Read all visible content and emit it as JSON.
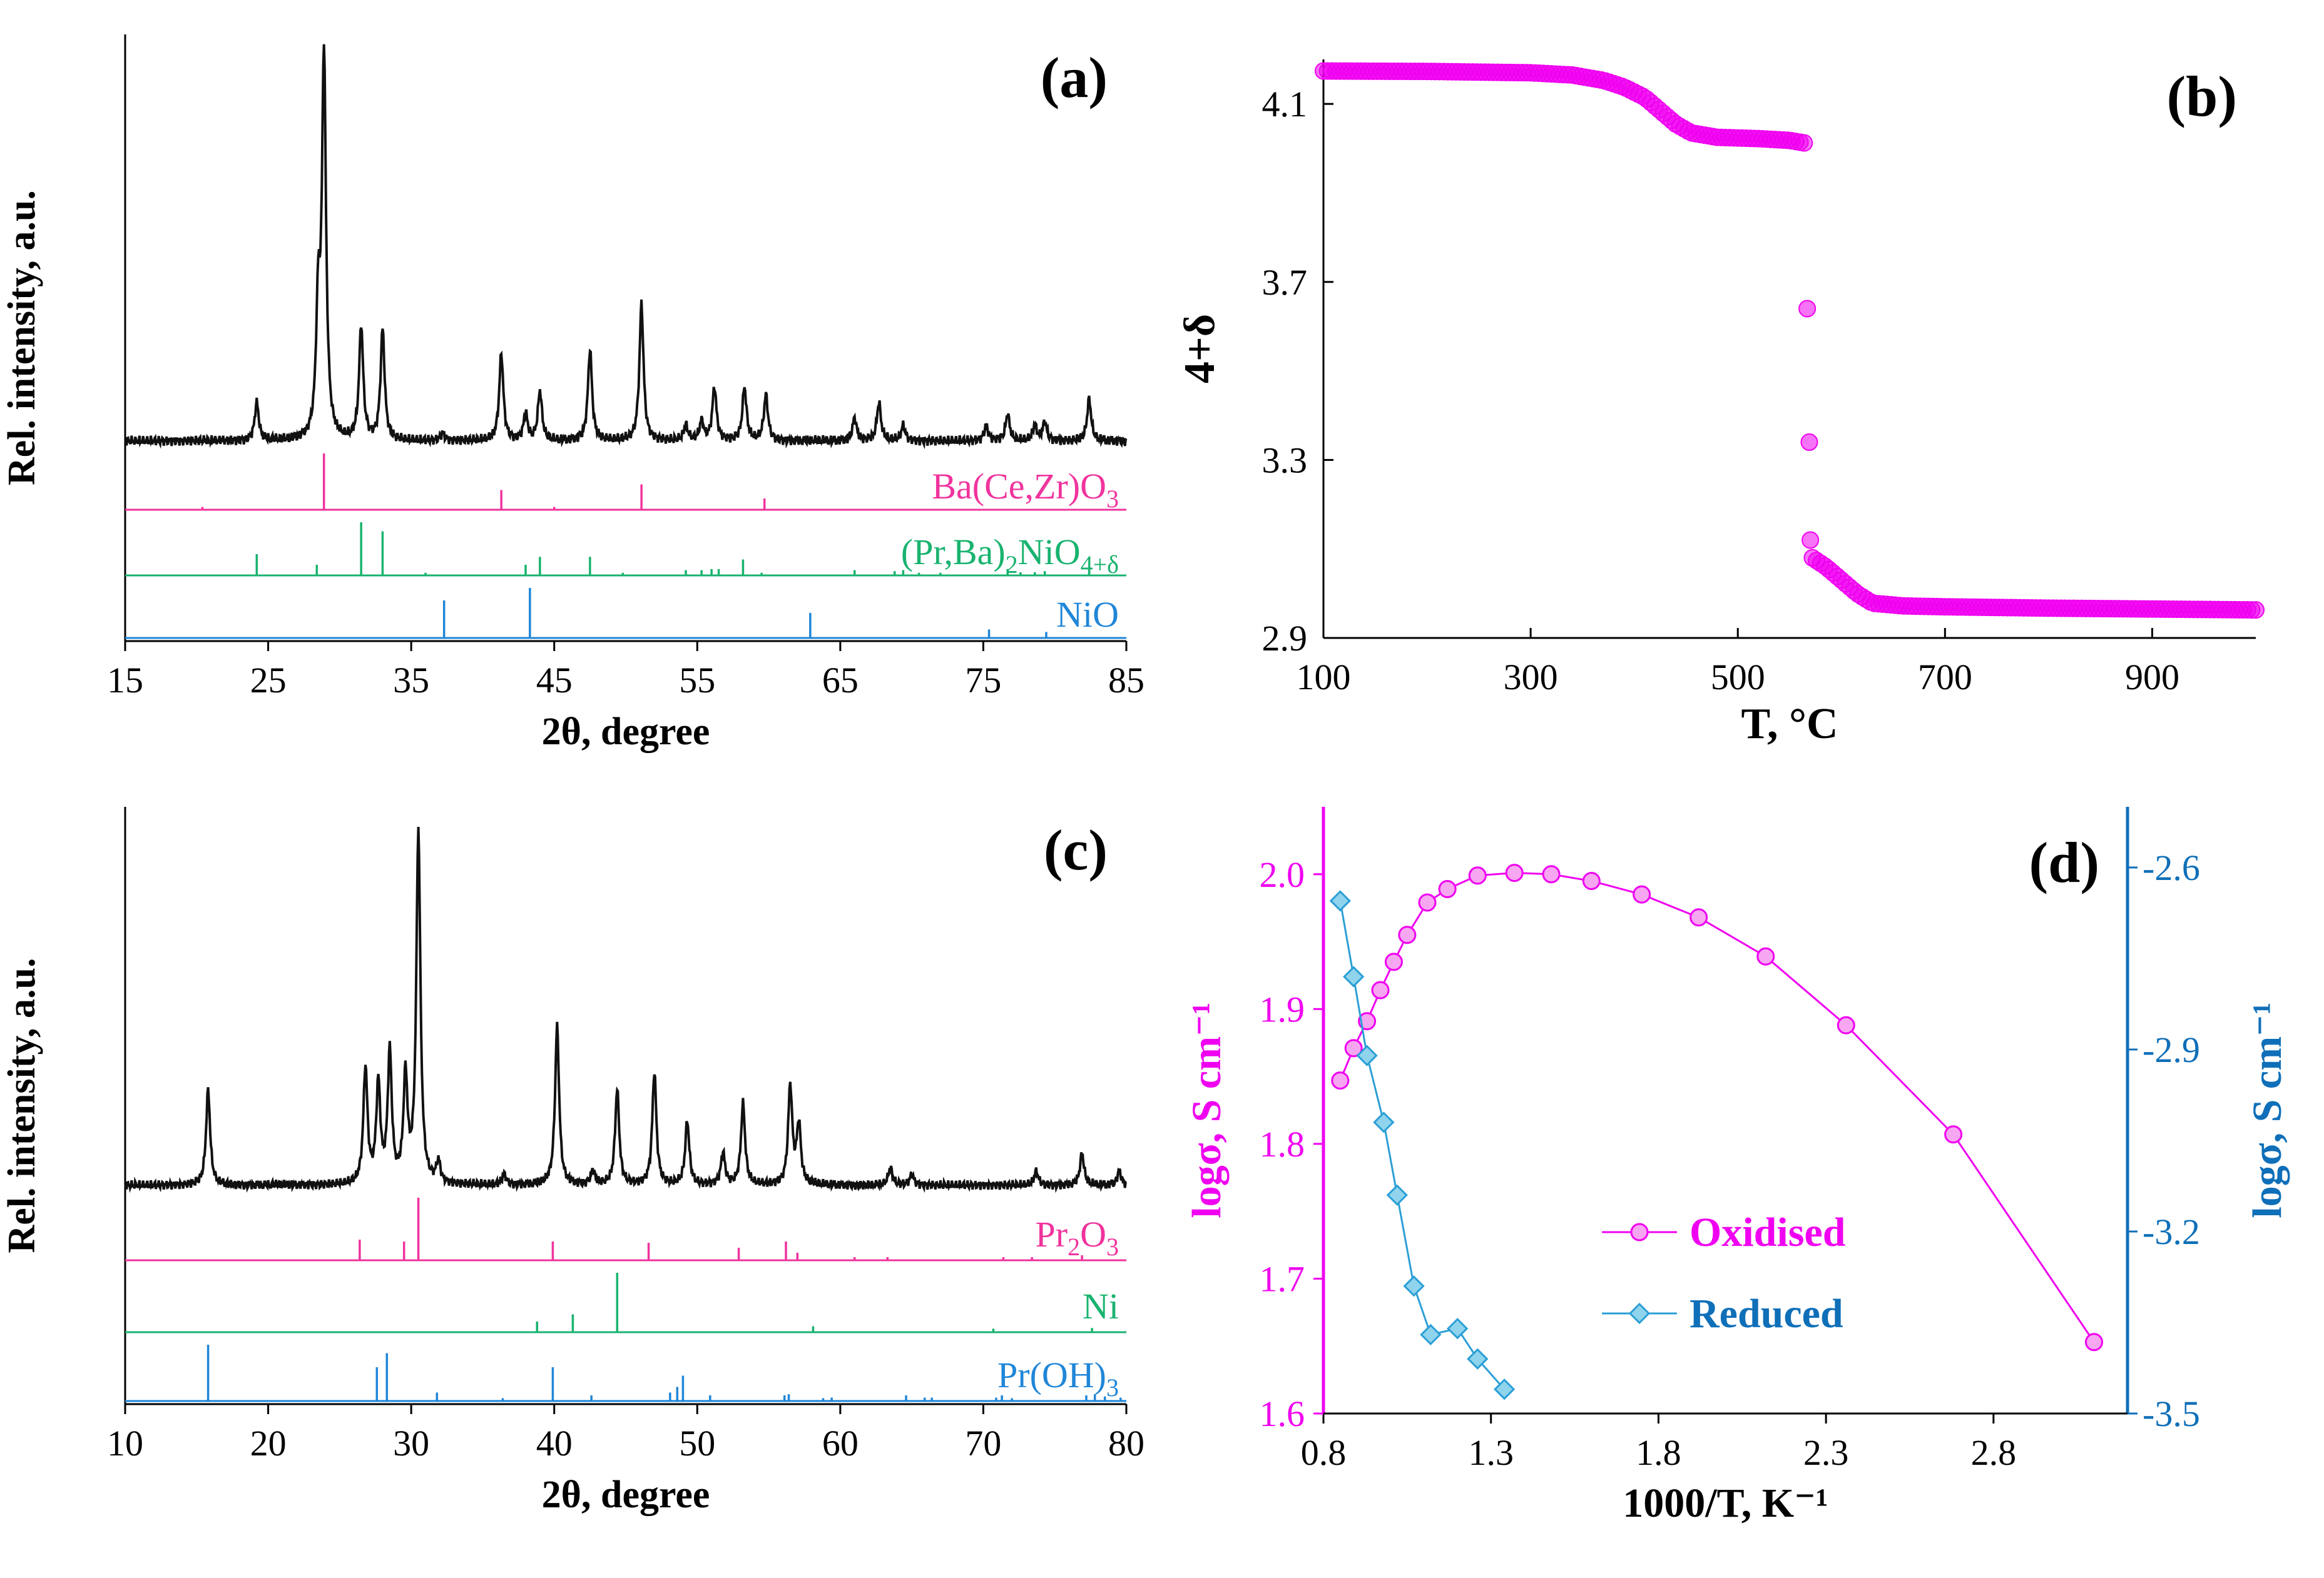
{
  "colors": {
    "axis": "#000000",
    "xrd": "#111111",
    "phase_pink": "#f0339d",
    "phase_green": "#19b36f",
    "phase_blue": "#1f86d8",
    "magenta": "#f000f0",
    "blue": "#0f6fb8",
    "reduced_fill": "#8fd3ec",
    "reduced_line": "#2b9fd6"
  },
  "chart_data": [
    {
      "panel": "(a)",
      "type": "line",
      "xlabel": "2θ, degree",
      "ylabel": "Rel. intensity, a.u.",
      "xlim": [
        15,
        85
      ],
      "xticks": [
        "15",
        "25",
        "35",
        "45",
        "55",
        "65",
        "75",
        "85"
      ],
      "xrd_peaks": [
        {
          "x": 24.2,
          "h": 0.1
        },
        {
          "x": 28.5,
          "h": 0.33
        },
        {
          "x": 28.9,
          "h": 1.0
        },
        {
          "x": 31.5,
          "h": 0.3
        },
        {
          "x": 33.0,
          "h": 0.29
        },
        {
          "x": 37.2,
          "h": 0.02
        },
        {
          "x": 41.3,
          "h": 0.23
        },
        {
          "x": 43.0,
          "h": 0.07
        },
        {
          "x": 44.0,
          "h": 0.13
        },
        {
          "x": 47.5,
          "h": 0.24
        },
        {
          "x": 51.1,
          "h": 0.36
        },
        {
          "x": 54.2,
          "h": 0.04
        },
        {
          "x": 55.3,
          "h": 0.05
        },
        {
          "x": 56.2,
          "h": 0.14
        },
        {
          "x": 58.3,
          "h": 0.14
        },
        {
          "x": 59.8,
          "h": 0.12
        },
        {
          "x": 66.0,
          "h": 0.06
        },
        {
          "x": 67.7,
          "h": 0.1
        },
        {
          "x": 69.4,
          "h": 0.04
        },
        {
          "x": 75.2,
          "h": 0.04
        },
        {
          "x": 76.7,
          "h": 0.07
        },
        {
          "x": 78.6,
          "h": 0.04
        },
        {
          "x": 79.3,
          "h": 0.05
        },
        {
          "x": 82.4,
          "h": 0.11
        }
      ],
      "phases": [
        {
          "label": "Ba(Ce,Zr)O",
          "sub": "3",
          "color_key": "phase_pink",
          "sticks": [
            [
              28.9,
              1.0
            ],
            [
              41.3,
              0.35
            ],
            [
              51.1,
              0.45
            ],
            [
              59.7,
              0.2
            ],
            [
              20.4,
              0.05
            ],
            [
              45.0,
              0.05
            ]
          ]
        },
        {
          "label": "(Pr,Ba)",
          "sub": "2",
          "label2": "NiO",
          "sub2": "4+δ",
          "color_key": "phase_green",
          "sticks": [
            [
              24.2,
              0.4
            ],
            [
              28.4,
              0.2
            ],
            [
              31.5,
              1.0
            ],
            [
              33.0,
              0.83
            ],
            [
              36.0,
              0.05
            ],
            [
              43.0,
              0.2
            ],
            [
              44.0,
              0.35
            ],
            [
              47.5,
              0.35
            ],
            [
              49.8,
              0.05
            ],
            [
              54.2,
              0.1
            ],
            [
              55.3,
              0.1
            ],
            [
              56.0,
              0.12
            ],
            [
              56.5,
              0.12
            ],
            [
              58.2,
              0.3
            ],
            [
              59.5,
              0.05
            ],
            [
              66.0,
              0.1
            ],
            [
              68.8,
              0.08
            ],
            [
              69.4,
              0.1
            ],
            [
              70.5,
              0.05
            ],
            [
              72.0,
              0.05
            ],
            [
              76.7,
              0.12
            ],
            [
              77.6,
              0.06
            ],
            [
              78.6,
              0.06
            ],
            [
              79.3,
              0.08
            ],
            [
              82.4,
              0.1
            ]
          ]
        },
        {
          "label": "NiO",
          "sub": "",
          "color_key": "phase_blue",
          "sticks": [
            [
              37.3,
              0.75
            ],
            [
              43.3,
              1.0
            ],
            [
              62.9,
              0.5
            ],
            [
              75.4,
              0.17
            ],
            [
              79.4,
              0.12
            ]
          ]
        }
      ]
    },
    {
      "panel": "(b)",
      "type": "scatter",
      "xlabel": "T, °C",
      "ylabel": "4+δ",
      "xlim": [
        100,
        1000
      ],
      "ylim": [
        2.9,
        4.2
      ],
      "xticks": [
        "100",
        "300",
        "500",
        "700",
        "900"
      ],
      "yticks": [
        "2.9",
        "3.3",
        "3.7",
        "4.1"
      ],
      "curve": [
        [
          100,
          4.174
        ],
        [
          200,
          4.173
        ],
        [
          300,
          4.17
        ],
        [
          340,
          4.165
        ],
        [
          370,
          4.153
        ],
        [
          390,
          4.138
        ],
        [
          410,
          4.115
        ],
        [
          425,
          4.085
        ],
        [
          440,
          4.055
        ],
        [
          455,
          4.035
        ],
        [
          480,
          4.025
        ],
        [
          520,
          4.022
        ],
        [
          550,
          4.018
        ],
        [
          565,
          4.012
        ]
      ],
      "jump_points": [
        [
          567,
          3.64
        ],
        [
          569,
          3.34
        ],
        [
          570,
          3.12
        ]
      ],
      "curve2": [
        [
          572,
          3.08
        ],
        [
          585,
          3.06
        ],
        [
          600,
          3.03
        ],
        [
          615,
          3.0
        ],
        [
          630,
          2.978
        ],
        [
          660,
          2.972
        ],
        [
          700,
          2.97
        ],
        [
          800,
          2.967
        ],
        [
          900,
          2.965
        ],
        [
          1000,
          2.963
        ]
      ]
    },
    {
      "panel": "(c)",
      "type": "line",
      "xlabel": "2θ, degree",
      "ylabel": "Rel. intensity, a.u.",
      "xlim": [
        10,
        80
      ],
      "xticks": [
        "10",
        "20",
        "30",
        "40",
        "50",
        "60",
        "70",
        "80"
      ],
      "xrd_peaks": [
        {
          "x": 15.8,
          "h": 0.27
        },
        {
          "x": 26.8,
          "h": 0.33
        },
        {
          "x": 27.7,
          "h": 0.28
        },
        {
          "x": 28.5,
          "h": 0.37
        },
        {
          "x": 29.6,
          "h": 0.3
        },
        {
          "x": 30.5,
          "h": 1.0
        },
        {
          "x": 31.9,
          "h": 0.06
        },
        {
          "x": 36.5,
          "h": 0.03
        },
        {
          "x": 40.2,
          "h": 0.45
        },
        {
          "x": 42.7,
          "h": 0.04
        },
        {
          "x": 44.4,
          "h": 0.27
        },
        {
          "x": 47.0,
          "h": 0.32
        },
        {
          "x": 49.3,
          "h": 0.18
        },
        {
          "x": 51.8,
          "h": 0.09
        },
        {
          "x": 53.2,
          "h": 0.23
        },
        {
          "x": 56.5,
          "h": 0.28
        },
        {
          "x": 57.1,
          "h": 0.17
        },
        {
          "x": 63.5,
          "h": 0.05
        },
        {
          "x": 65.0,
          "h": 0.03
        },
        {
          "x": 73.7,
          "h": 0.04
        },
        {
          "x": 76.9,
          "h": 0.09
        },
        {
          "x": 79.5,
          "h": 0.04
        }
      ],
      "phases": [
        {
          "label": "Pr",
          "sub": "2",
          "label2": "O",
          "sub2": "3",
          "color_key": "phase_pink",
          "sticks": [
            [
              26.4,
              0.33
            ],
            [
              29.5,
              0.3
            ],
            [
              30.5,
              1.0
            ],
            [
              39.9,
              0.3
            ],
            [
              46.6,
              0.28
            ],
            [
              52.9,
              0.2
            ],
            [
              56.2,
              0.3
            ],
            [
              57.0,
              0.12
            ],
            [
              61.0,
              0.05
            ],
            [
              63.3,
              0.05
            ],
            [
              71.4,
              0.05
            ],
            [
              73.4,
              0.05
            ],
            [
              76.9,
              0.08
            ]
          ]
        },
        {
          "label": "Ni",
          "sub": "",
          "color_key": "phase_green",
          "sticks": [
            [
              38.8,
              0.18
            ],
            [
              41.3,
              0.3
            ],
            [
              44.4,
              1.0
            ],
            [
              58.1,
              0.1
            ],
            [
              70.7,
              0.06
            ],
            [
              77.6,
              0.07
            ]
          ]
        },
        {
          "label": "Pr(OH)",
          "sub": "3",
          "color_key": "phase_blue",
          "sticks": [
            [
              15.8,
              1.0
            ],
            [
              27.6,
              0.6
            ],
            [
              28.3,
              0.85
            ],
            [
              31.8,
              0.15
            ],
            [
              36.4,
              0.05
            ],
            [
              39.9,
              0.6
            ],
            [
              42.6,
              0.1
            ],
            [
              48.1,
              0.15
            ],
            [
              48.6,
              0.25
            ],
            [
              49.0,
              0.45
            ],
            [
              50.9,
              0.1
            ],
            [
              56.1,
              0.1
            ],
            [
              56.4,
              0.12
            ],
            [
              58.8,
              0.05
            ],
            [
              59.4,
              0.06
            ],
            [
              64.6,
              0.1
            ],
            [
              65.9,
              0.06
            ],
            [
              66.4,
              0.06
            ],
            [
              70.9,
              0.06
            ],
            [
              71.3,
              0.1
            ],
            [
              72.0,
              0.05
            ],
            [
              77.2,
              0.1
            ],
            [
              77.8,
              0.12
            ],
            [
              78.5,
              0.08
            ],
            [
              79.6,
              0.06
            ]
          ]
        }
      ]
    },
    {
      "panel": "(d)",
      "type": "line",
      "xlabel": "1000/T, K⁻¹",
      "ylabel_left": "logσ, S cm⁻¹",
      "ylabel_right": "logσ, S cm⁻¹",
      "xlim": [
        0.8,
        3.2
      ],
      "ylim_left": [
        1.6,
        2.05
      ],
      "ylim_right": [
        -3.5,
        -2.5
      ],
      "xticks": [
        "0.8",
        "1.3",
        "1.8",
        "2.3",
        "2.8"
      ],
      "yticks_left": [
        "1.6",
        "1.7",
        "1.8",
        "1.9",
        "2.0"
      ],
      "yticks_right": [
        "-3.5",
        "-3.2",
        "-2.9",
        "-2.6"
      ],
      "series": [
        {
          "name": "Oxidised",
          "axis": "left",
          "marker": "circle",
          "x": [
            0.85,
            0.89,
            0.93,
            0.97,
            1.01,
            1.05,
            1.11,
            1.17,
            1.26,
            1.37,
            1.48,
            1.6,
            1.75,
            1.92,
            2.12,
            2.36,
            2.68,
            3.1
          ],
          "y": [
            1.847,
            1.871,
            1.891,
            1.914,
            1.935,
            1.955,
            1.979,
            1.989,
            1.999,
            2.001,
            2.0,
            1.995,
            1.985,
            1.968,
            1.939,
            1.888,
            1.807,
            1.653
          ]
        },
        {
          "name": "Reduced",
          "axis": "right",
          "marker": "diamond",
          "x": [
            0.85,
            0.89,
            0.93,
            0.98,
            1.02,
            1.07,
            1.12,
            1.2,
            1.26,
            1.34
          ],
          "y": [
            -2.655,
            -2.78,
            -2.91,
            -3.02,
            -3.14,
            -3.29,
            -3.37,
            -3.36,
            -3.41,
            -3.46
          ]
        }
      ]
    }
  ]
}
